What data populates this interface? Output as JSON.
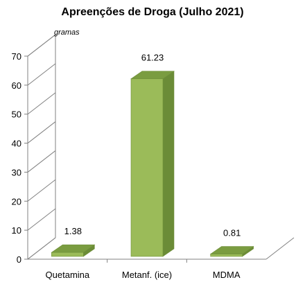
{
  "chart_data": {
    "type": "bar",
    "title": "Apreenções de Droga (Julho 2021)",
    "unit_label": "gramas",
    "categories": [
      "Quetamina",
      "Metanf. (ice)",
      "MDMA"
    ],
    "values": [
      1.38,
      61.23,
      0.81
    ],
    "data_labels": [
      "1.38",
      "61.23",
      "0.81"
    ],
    "ylim": [
      0,
      70
    ],
    "yticks": [
      "0",
      "10",
      "20",
      "30",
      "40",
      "50",
      "60",
      "70"
    ],
    "grid": false,
    "legend": "none",
    "colors": {
      "front": "#9bbb59",
      "side": "#6b8c37",
      "top": "#7a9c40",
      "edge": "#6f8f3a",
      "axis": "#808080"
    }
  }
}
